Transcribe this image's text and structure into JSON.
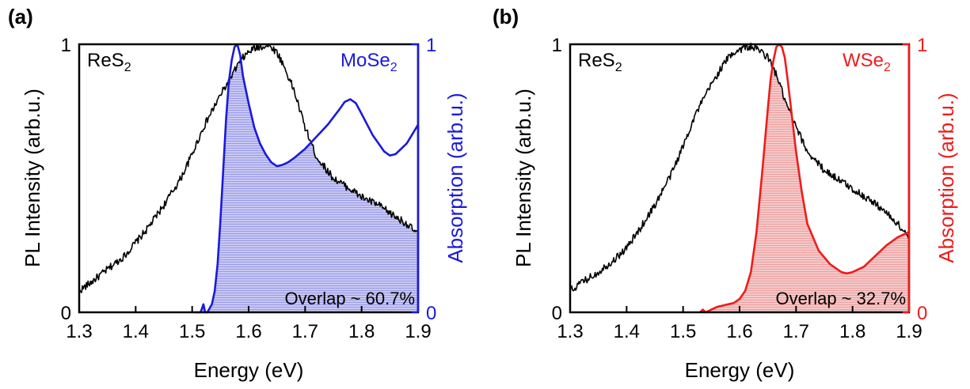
{
  "chart_data": [
    {
      "type": "line",
      "panel_label": "(a)",
      "xlabel": "Energy (eV)",
      "ylabel_left": "PL Intensity (arb.u.)",
      "ylabel_right": "Absorption (arb.u.)",
      "xlim": [
        1.3,
        1.9
      ],
      "ylim_left": [
        0,
        1
      ],
      "ylim_right": [
        0,
        1
      ],
      "x_ticks": [
        "1.3",
        "1.4",
        "1.5",
        "1.6",
        "1.7",
        "1.8",
        "1.9"
      ],
      "y_ticks_left": [
        "0",
        "1"
      ],
      "y_ticks_right": [
        "0",
        "1"
      ],
      "grid": false,
      "annotation": "Overlap ~ 60.7%",
      "series": [
        {
          "name": "ReS",
          "name_subscript": "2",
          "color": "#000000",
          "axis": "left",
          "noisy": true,
          "x": [
            1.3,
            1.32,
            1.35,
            1.38,
            1.4,
            1.42,
            1.45,
            1.48,
            1.5,
            1.52,
            1.55,
            1.57,
            1.58,
            1.59,
            1.6,
            1.61,
            1.62,
            1.63,
            1.64,
            1.65,
            1.66,
            1.68,
            1.7,
            1.72,
            1.75,
            1.78,
            1.8,
            1.83,
            1.85,
            1.88,
            1.9
          ],
          "y": [
            0.08,
            0.11,
            0.16,
            0.21,
            0.26,
            0.31,
            0.4,
            0.5,
            0.59,
            0.69,
            0.81,
            0.88,
            0.92,
            0.95,
            0.97,
            0.985,
            0.99,
            0.995,
            0.99,
            0.97,
            0.93,
            0.83,
            0.69,
            0.58,
            0.5,
            0.46,
            0.43,
            0.4,
            0.37,
            0.33,
            0.29
          ]
        },
        {
          "name": "MoSe",
          "name_subscript": "2",
          "color": "#1a1adc",
          "axis": "right",
          "noisy": false,
          "filled": true,
          "fill_color": "#b4b4ee",
          "x": [
            1.505,
            1.51,
            1.515,
            1.52,
            1.523,
            1.527,
            1.535,
            1.54,
            1.545,
            1.55,
            1.555,
            1.56,
            1.565,
            1.57,
            1.575,
            1.58,
            1.585,
            1.59,
            1.6,
            1.61,
            1.62,
            1.63,
            1.64,
            1.65,
            1.66,
            1.67,
            1.68,
            1.7,
            1.72,
            1.74,
            1.76,
            1.77,
            1.78,
            1.79,
            1.8,
            1.82,
            1.84,
            1.85,
            1.86,
            1.88,
            1.9
          ],
          "y": [
            0.0,
            0.0,
            0.0,
            0.03,
            0.0,
            0.0,
            0.03,
            0.08,
            0.18,
            0.34,
            0.53,
            0.72,
            0.86,
            0.94,
            0.99,
            1.0,
            0.96,
            0.88,
            0.78,
            0.69,
            0.63,
            0.59,
            0.56,
            0.545,
            0.55,
            0.56,
            0.575,
            0.61,
            0.655,
            0.7,
            0.755,
            0.785,
            0.795,
            0.78,
            0.74,
            0.66,
            0.6,
            0.585,
            0.59,
            0.63,
            0.7
          ]
        }
      ]
    },
    {
      "type": "line",
      "panel_label": "(b)",
      "xlabel": "Energy (eV)",
      "ylabel_left": "PL Intensity (arb.u.)",
      "ylabel_right": "Absorption (arb.u.)",
      "xlim": [
        1.3,
        1.9
      ],
      "ylim_left": [
        0,
        1
      ],
      "ylim_right": [
        0,
        1
      ],
      "x_ticks": [
        "1.3",
        "1.4",
        "1.5",
        "1.6",
        "1.7",
        "1.8",
        "1.9"
      ],
      "y_ticks_left": [
        "0",
        "1"
      ],
      "y_ticks_right": [
        "0",
        "1"
      ],
      "grid": false,
      "annotation": "Overlap ~ 32.7%",
      "series": [
        {
          "name": "ReS",
          "name_subscript": "2",
          "color": "#000000",
          "axis": "left",
          "noisy": true,
          "x": [
            1.3,
            1.32,
            1.35,
            1.38,
            1.4,
            1.42,
            1.45,
            1.48,
            1.5,
            1.52,
            1.55,
            1.57,
            1.58,
            1.59,
            1.6,
            1.61,
            1.62,
            1.63,
            1.64,
            1.65,
            1.66,
            1.67,
            1.68,
            1.7,
            1.72,
            1.75,
            1.78,
            1.8,
            1.83,
            1.85,
            1.88,
            1.9
          ],
          "y": [
            0.08,
            0.11,
            0.15,
            0.2,
            0.24,
            0.3,
            0.4,
            0.52,
            0.62,
            0.73,
            0.85,
            0.92,
            0.95,
            0.97,
            0.98,
            0.99,
            0.99,
            0.985,
            0.97,
            0.95,
            0.91,
            0.86,
            0.79,
            0.69,
            0.6,
            0.53,
            0.49,
            0.46,
            0.42,
            0.39,
            0.33,
            0.28
          ]
        },
        {
          "name": "WSe",
          "name_subscript": "2",
          "color": "#ee1c1c",
          "axis": "right",
          "noisy": false,
          "filled": true,
          "fill_color": "#f4b8b8",
          "x": [
            1.53,
            1.535,
            1.54,
            1.55,
            1.56,
            1.57,
            1.58,
            1.59,
            1.6,
            1.61,
            1.62,
            1.63,
            1.64,
            1.65,
            1.655,
            1.66,
            1.665,
            1.67,
            1.675,
            1.68,
            1.685,
            1.69,
            1.7,
            1.71,
            1.72,
            1.74,
            1.76,
            1.78,
            1.79,
            1.8,
            1.82,
            1.84,
            1.86,
            1.88,
            1.9
          ],
          "y": [
            0.0,
            0.01,
            0.0,
            0.01,
            0.02,
            0.025,
            0.03,
            0.035,
            0.05,
            0.08,
            0.15,
            0.3,
            0.52,
            0.76,
            0.87,
            0.94,
            0.99,
            1.0,
            0.99,
            0.95,
            0.87,
            0.78,
            0.6,
            0.45,
            0.33,
            0.23,
            0.18,
            0.15,
            0.145,
            0.15,
            0.17,
            0.21,
            0.25,
            0.28,
            0.3
          ]
        }
      ]
    }
  ]
}
